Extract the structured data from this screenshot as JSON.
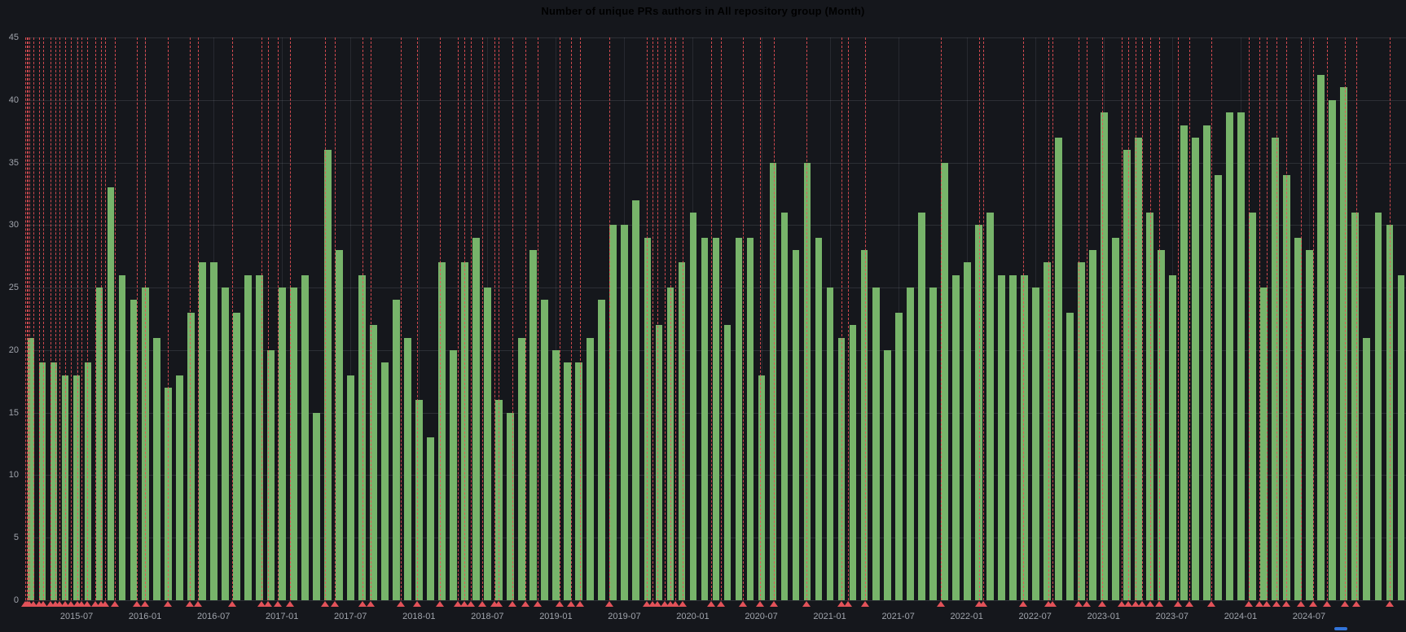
{
  "panel": {
    "title": "Number of unique PRs authors in All repository group (Month)"
  },
  "colors": {
    "background": "#15171c",
    "bar": "#77b46a",
    "annotation": "#ea5157",
    "grid": "rgba(204,210,224,0.13)",
    "axis_text": "#a0a4ac",
    "title_text": "#d5d7dc",
    "scroll_hint": "#3274d9"
  },
  "chart_data": {
    "type": "bar",
    "title": "Number of unique PRs authors in All repository group (Month)",
    "xlabel": "",
    "ylabel": "",
    "ylim": [
      0,
      45
    ],
    "grid": true,
    "legend_position": "none",
    "x_start_month": "2015-03",
    "x_unit": "month",
    "values": [
      21,
      19,
      19,
      18,
      18,
      19,
      25,
      33,
      26,
      24,
      25,
      21,
      17,
      18,
      23,
      27,
      27,
      25,
      23,
      26,
      26,
      20,
      25,
      25,
      26,
      15,
      36,
      28,
      18,
      26,
      22,
      19,
      24,
      21,
      16,
      13,
      27,
      20,
      27,
      29,
      25,
      16,
      15,
      21,
      28,
      24,
      20,
      19,
      19,
      21,
      24,
      30,
      30,
      32,
      29,
      22,
      25,
      27,
      31,
      29,
      29,
      22,
      29,
      29,
      18,
      35,
      31,
      28,
      35,
      29,
      25,
      21,
      22,
      28,
      25,
      20,
      23,
      25,
      31,
      25,
      35,
      26,
      27,
      30,
      31,
      26,
      26,
      26,
      25,
      27,
      37,
      23,
      27,
      28,
      39,
      29,
      36,
      37,
      31,
      28,
      26,
      38,
      37,
      38,
      34,
      39,
      39,
      31,
      25,
      37,
      34,
      29,
      28,
      42,
      40,
      41,
      31,
      21,
      31,
      30,
      26
    ],
    "y_ticks": [
      0,
      5,
      10,
      15,
      20,
      25,
      30,
      35,
      40,
      45
    ],
    "x_tick_labels": [
      {
        "label": "2015-07",
        "bar_index": 4
      },
      {
        "label": "2016-01",
        "bar_index": 10
      },
      {
        "label": "2016-07",
        "bar_index": 16
      },
      {
        "label": "2017-01",
        "bar_index": 22
      },
      {
        "label": "2017-07",
        "bar_index": 28
      },
      {
        "label": "2018-01",
        "bar_index": 34
      },
      {
        "label": "2018-07",
        "bar_index": 40
      },
      {
        "label": "2019-01",
        "bar_index": 46
      },
      {
        "label": "2019-07",
        "bar_index": 52
      },
      {
        "label": "2020-01",
        "bar_index": 58
      },
      {
        "label": "2020-07",
        "bar_index": 64
      },
      {
        "label": "2021-01",
        "bar_index": 70
      },
      {
        "label": "2021-07",
        "bar_index": 76
      },
      {
        "label": "2022-01",
        "bar_index": 82
      },
      {
        "label": "2022-07",
        "bar_index": 88
      },
      {
        "label": "2023-01",
        "bar_index": 94
      },
      {
        "label": "2023-07",
        "bar_index": 100
      },
      {
        "label": "2024-01",
        "bar_index": 106
      },
      {
        "label": "2024-07",
        "bar_index": 112
      }
    ],
    "annotations_pct": [
      0.0,
      0.1,
      0.2,
      0.3,
      0.6,
      1.0,
      1.3,
      1.8,
      2.2,
      2.5,
      2.9,
      3.3,
      3.8,
      4.1,
      4.5,
      5.1,
      5.5,
      5.8,
      6.5,
      8.1,
      8.7,
      10.3,
      11.9,
      12.5,
      15.0,
      17.1,
      17.6,
      18.3,
      19.2,
      21.7,
      22.4,
      24.4,
      25.0,
      27.2,
      28.4,
      30.0,
      31.3,
      31.8,
      32.3,
      33.1,
      34.0,
      34.3,
      35.3,
      36.2,
      37.1,
      38.7,
      39.5,
      40.2,
      42.3,
      45.0,
      45.4,
      45.8,
      46.3,
      46.7,
      47.1,
      47.6,
      49.7,
      50.4,
      52.0,
      53.2,
      54.2,
      56.6,
      59.1,
      59.6,
      60.8,
      66.3,
      69.1,
      69.4,
      72.3,
      74.1,
      74.4,
      76.3,
      76.9,
      78.0,
      79.4,
      79.9,
      80.4,
      80.9,
      81.5,
      82.1,
      83.5,
      84.3,
      85.9,
      88.6,
      89.4,
      89.9,
      90.6,
      91.3,
      92.4,
      93.3,
      94.3,
      95.6,
      96.4,
      98.8
    ]
  }
}
